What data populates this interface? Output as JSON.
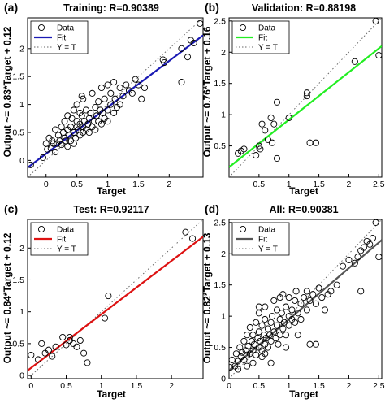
{
  "figure": {
    "panels": [
      {
        "tag": "(a)",
        "title": "Training:  R=0.90389",
        "xlabel": "Target",
        "ylabel": "Output ~= 0.83*Target + 0.12"
      },
      {
        "tag": "(b)",
        "title": "Validation:  R=0.88198",
        "xlabel": "Target",
        "ylabel": "Output ~= 0.76*Target + 0.16"
      },
      {
        "tag": "(c)",
        "title": "Test:  R=0.92117",
        "xlabel": "Target",
        "ylabel": "Output ~= 0.84*Target + 0.12"
      },
      {
        "tag": "(d)",
        "title": "All:  R=0.90381",
        "xlabel": "Target",
        "ylabel": "Output ~= 0.82*Target + 0.13"
      }
    ]
  },
  "chart_data": [
    {
      "type": "scatter",
      "title": "Training:  R=0.90389",
      "xlabel": "Target",
      "ylabel": "Output ~= 0.83*Target + 0.12",
      "xlim": [
        -0.3,
        2.55
      ],
      "ylim": [
        -0.3,
        2.55
      ],
      "xticks": [
        "0",
        "0.5",
        "1",
        "1.5",
        "2"
      ],
      "yticks": [
        "0",
        "0.5",
        "1",
        "1.5",
        "2"
      ],
      "grid": false,
      "legend_position": "top-left",
      "legend": [
        "Data",
        "Fit",
        "Y = T"
      ],
      "fit": {
        "slope": 0.83,
        "intercept": 0.12,
        "color": "#1a1ab4"
      },
      "identity_line": true,
      "points": [
        [
          -0.25,
          -0.08
        ],
        [
          -0.05,
          0.05
        ],
        [
          0.0,
          0.3
        ],
        [
          0.02,
          0.2
        ],
        [
          0.05,
          0.4
        ],
        [
          0.08,
          0.22
        ],
        [
          0.1,
          0.35
        ],
        [
          0.12,
          0.3
        ],
        [
          0.15,
          0.55
        ],
        [
          0.18,
          0.3
        ],
        [
          0.2,
          0.45
        ],
        [
          0.22,
          0.35
        ],
        [
          0.25,
          0.6
        ],
        [
          0.25,
          0.28
        ],
        [
          0.28,
          0.5
        ],
        [
          0.3,
          0.4
        ],
        [
          0.3,
          0.7
        ],
        [
          0.32,
          0.35
        ],
        [
          0.35,
          0.55
        ],
        [
          0.35,
          0.8
        ],
        [
          0.38,
          0.45
        ],
        [
          0.4,
          0.6
        ],
        [
          0.4,
          0.35
        ],
        [
          0.42,
          0.75
        ],
        [
          0.45,
          0.5
        ],
        [
          0.45,
          0.9
        ],
        [
          0.48,
          0.4
        ],
        [
          0.5,
          0.6
        ],
        [
          0.5,
          0.7
        ],
        [
          0.5,
          1.0
        ],
        [
          0.52,
          0.55
        ],
        [
          0.55,
          0.45
        ],
        [
          0.55,
          0.65
        ],
        [
          0.58,
          0.8
        ],
        [
          0.6,
          0.5
        ],
        [
          0.6,
          0.6
        ],
        [
          0.6,
          1.1
        ],
        [
          0.62,
          0.7
        ],
        [
          0.65,
          0.55
        ],
        [
          0.65,
          0.9
        ],
        [
          0.68,
          0.65
        ],
        [
          0.7,
          0.75
        ],
        [
          0.7,
          0.5
        ],
        [
          0.72,
          0.85
        ],
        [
          0.75,
          0.6
        ],
        [
          0.75,
          1.2
        ],
        [
          0.78,
          0.7
        ],
        [
          0.8,
          0.95
        ],
        [
          0.8,
          0.55
        ],
        [
          0.82,
          0.8
        ],
        [
          0.85,
          0.7
        ],
        [
          0.85,
          1.05
        ],
        [
          0.88,
          0.9
        ],
        [
          0.9,
          0.65
        ],
        [
          0.9,
          1.3
        ],
        [
          0.92,
          0.85
        ],
        [
          0.95,
          0.75
        ],
        [
          0.95,
          1.1
        ],
        [
          1.0,
          0.9
        ],
        [
          1.0,
          1.35
        ],
        [
          1.0,
          0.7
        ],
        [
          1.05,
          1.0
        ],
        [
          1.05,
          1.2
        ],
        [
          1.1,
          0.85
        ],
        [
          1.1,
          1.4
        ],
        [
          1.12,
          1.1
        ],
        [
          1.15,
          0.95
        ],
        [
          1.2,
          1.3
        ],
        [
          1.2,
          1.0
        ],
        [
          1.25,
          1.15
        ],
        [
          1.3,
          1.35
        ],
        [
          1.35,
          1.25
        ],
        [
          1.4,
          1.2
        ],
        [
          1.45,
          1.45
        ],
        [
          1.5,
          1.35
        ],
        [
          1.55,
          1.1
        ],
        [
          1.6,
          1.3
        ],
        [
          1.9,
          1.8
        ],
        [
          1.92,
          1.75
        ],
        [
          2.2,
          1.4
        ],
        [
          2.2,
          2.0
        ],
        [
          2.3,
          1.85
        ],
        [
          2.35,
          2.15
        ],
        [
          2.4,
          2.1
        ],
        [
          2.5,
          2.45
        ],
        [
          0.45,
          0.3
        ],
        [
          0.58,
          1.15
        ],
        [
          0.15,
          0.15
        ],
        [
          0.35,
          0.25
        ],
        [
          0.55,
          0.85
        ]
      ]
    },
    {
      "type": "scatter",
      "title": "Validation:  R=0.88198",
      "xlabel": "Target",
      "ylabel": "Output ~= 0.76*Target + 0.16",
      "xlim": [
        0.0,
        2.55
      ],
      "ylim": [
        0.0,
        2.55
      ],
      "xticks": [
        "0.5",
        "1",
        "1.5",
        "2",
        "2.5"
      ],
      "yticks": [
        "0.5",
        "1",
        "1.5",
        "2",
        "2.5"
      ],
      "grid": false,
      "legend_position": "top-left",
      "legend": [
        "Data",
        "Fit",
        "Y = T"
      ],
      "fit": {
        "slope": 0.76,
        "intercept": 0.16,
        "color": "#22ee22"
      },
      "identity_line": true,
      "points": [
        [
          0.15,
          0.38
        ],
        [
          0.2,
          0.42
        ],
        [
          0.25,
          0.45
        ],
        [
          0.45,
          0.35
        ],
        [
          0.5,
          0.5
        ],
        [
          0.52,
          0.45
        ],
        [
          0.55,
          0.85
        ],
        [
          0.6,
          0.75
        ],
        [
          0.65,
          0.6
        ],
        [
          0.7,
          0.95
        ],
        [
          0.72,
          0.55
        ],
        [
          0.75,
          0.85
        ],
        [
          0.8,
          1.2
        ],
        [
          0.8,
          0.3
        ],
        [
          1.0,
          0.95
        ],
        [
          1.3,
          1.35
        ],
        [
          1.3,
          1.3
        ],
        [
          1.35,
          0.55
        ],
        [
          1.45,
          0.55
        ],
        [
          2.1,
          1.85
        ],
        [
          2.45,
          2.5
        ],
        [
          2.5,
          1.95
        ]
      ]
    },
    {
      "type": "scatter",
      "title": "Test:  R=0.92117",
      "xlabel": "Target",
      "ylabel": "Output ~= 0.84*Target + 0.12",
      "xlim": [
        -0.05,
        2.45
      ],
      "ylim": [
        -0.05,
        2.45
      ],
      "xticks": [
        "0",
        "0.5",
        "1",
        "1.5",
        "2"
      ],
      "yticks": [
        "0",
        "0.5",
        "1",
        "1.5",
        "2"
      ],
      "grid": false,
      "legend_position": "top-left",
      "legend": [
        "Data",
        "Fit",
        "Y = T"
      ],
      "fit": {
        "slope": 0.84,
        "intercept": 0.12,
        "color": "#dd1111"
      },
      "identity_line": true,
      "points": [
        [
          0.0,
          0.32
        ],
        [
          0.1,
          0.25
        ],
        [
          0.15,
          0.5
        ],
        [
          0.2,
          0.35
        ],
        [
          0.3,
          0.3
        ],
        [
          0.35,
          0.45
        ],
        [
          0.45,
          0.6
        ],
        [
          0.5,
          0.48
        ],
        [
          0.55,
          0.55
        ],
        [
          0.6,
          0.5
        ],
        [
          0.65,
          0.45
        ],
        [
          0.7,
          0.55
        ],
        [
          0.75,
          0.35
        ],
        [
          0.8,
          0.2
        ],
        [
          0.55,
          0.6
        ],
        [
          1.05,
          0.9
        ],
        [
          1.1,
          1.25
        ],
        [
          2.2,
          2.25
        ],
        [
          2.3,
          2.15
        ],
        [
          0.25,
          0.4
        ]
      ]
    },
    {
      "type": "scatter",
      "title": "All:  R=0.90381",
      "xlabel": "Target",
      "ylabel": "Output ~= 0.82*Target + 0.13",
      "xlim": [
        0.0,
        2.55
      ],
      "ylim": [
        0.0,
        2.55
      ],
      "xticks": [
        "0",
        "0.5",
        "1",
        "1.5",
        "2",
        "2.5"
      ],
      "yticks": [
        "0",
        "0.5",
        "1",
        "1.5",
        "2",
        "2.5"
      ],
      "grid": false,
      "legend_position": "top-left",
      "legend": [
        "Data",
        "Fit",
        "Y = T"
      ],
      "fit": {
        "slope": 0.82,
        "intercept": 0.13,
        "color": "#555555"
      },
      "identity_line": true,
      "points": [
        [
          -0.1,
          0.0
        ],
        [
          0.02,
          0.18
        ],
        [
          0.05,
          0.3
        ],
        [
          0.1,
          0.2
        ],
        [
          0.12,
          0.4
        ],
        [
          0.15,
          0.28
        ],
        [
          0.18,
          0.5
        ],
        [
          0.2,
          0.35
        ],
        [
          0.22,
          0.42
        ],
        [
          0.25,
          0.6
        ],
        [
          0.25,
          0.3
        ],
        [
          0.28,
          0.45
        ],
        [
          0.3,
          0.38
        ],
        [
          0.3,
          0.7
        ],
        [
          0.32,
          0.52
        ],
        [
          0.35,
          0.4
        ],
        [
          0.35,
          0.82
        ],
        [
          0.38,
          0.6
        ],
        [
          0.4,
          0.45
        ],
        [
          0.4,
          0.7
        ],
        [
          0.42,
          0.55
        ],
        [
          0.45,
          0.9
        ],
        [
          0.45,
          0.38
        ],
        [
          0.48,
          0.65
        ],
        [
          0.5,
          0.5
        ],
        [
          0.5,
          0.75
        ],
        [
          0.5,
          1.05
        ],
        [
          0.52,
          0.6
        ],
        [
          0.55,
          0.45
        ],
        [
          0.55,
          0.85
        ],
        [
          0.58,
          0.7
        ],
        [
          0.6,
          0.55
        ],
        [
          0.6,
          0.95
        ],
        [
          0.6,
          1.15
        ],
        [
          0.62,
          0.65
        ],
        [
          0.65,
          0.8
        ],
        [
          0.65,
          0.5
        ],
        [
          0.68,
          0.7
        ],
        [
          0.7,
          0.9
        ],
        [
          0.7,
          0.6
        ],
        [
          0.72,
          1.0
        ],
        [
          0.75,
          0.75
        ],
        [
          0.75,
          1.25
        ],
        [
          0.78,
          0.65
        ],
        [
          0.8,
          0.85
        ],
        [
          0.8,
          1.1
        ],
        [
          0.82,
          0.55
        ],
        [
          0.85,
          0.95
        ],
        [
          0.85,
          0.7
        ],
        [
          0.88,
          1.05
        ],
        [
          0.9,
          0.8
        ],
        [
          0.9,
          1.35
        ],
        [
          0.92,
          0.9
        ],
        [
          0.95,
          1.15
        ],
        [
          0.95,
          0.7
        ],
        [
          1.0,
          1.0
        ],
        [
          1.0,
          0.85
        ],
        [
          1.0,
          1.3
        ],
        [
          1.05,
          1.1
        ],
        [
          1.05,
          0.95
        ],
        [
          1.1,
          1.25
        ],
        [
          1.1,
          0.9
        ],
        [
          1.12,
          1.4
        ],
        [
          1.15,
          1.05
        ],
        [
          1.2,
          1.2
        ],
        [
          1.2,
          0.95
        ],
        [
          1.25,
          1.3
        ],
        [
          1.3,
          1.1
        ],
        [
          1.3,
          1.4
        ],
        [
          1.35,
          1.25
        ],
        [
          1.35,
          0.55
        ],
        [
          1.4,
          1.35
        ],
        [
          1.45,
          1.2
        ],
        [
          1.45,
          0.55
        ],
        [
          1.5,
          1.45
        ],
        [
          1.55,
          1.3
        ],
        [
          1.6,
          1.1
        ],
        [
          1.65,
          1.35
        ],
        [
          1.7,
          1.4
        ],
        [
          1.8,
          1.5
        ],
        [
          1.9,
          1.8
        ],
        [
          2.0,
          1.9
        ],
        [
          2.1,
          1.85
        ],
        [
          2.15,
          1.95
        ],
        [
          2.2,
          2.05
        ],
        [
          2.2,
          1.4
        ],
        [
          2.25,
          2.1
        ],
        [
          2.3,
          2.2
        ],
        [
          2.35,
          2.15
        ],
        [
          2.4,
          2.25
        ],
        [
          2.45,
          2.5
        ],
        [
          2.5,
          1.95
        ],
        [
          0.15,
          0.15
        ],
        [
          0.3,
          0.2
        ],
        [
          0.55,
          0.35
        ],
        [
          0.7,
          0.25
        ],
        [
          0.4,
          0.25
        ],
        [
          0.6,
          0.4
        ],
        [
          0.95,
          0.5
        ],
        [
          1.15,
          0.7
        ],
        [
          0.85,
          1.3
        ],
        [
          0.5,
          1.15
        ]
      ]
    }
  ]
}
